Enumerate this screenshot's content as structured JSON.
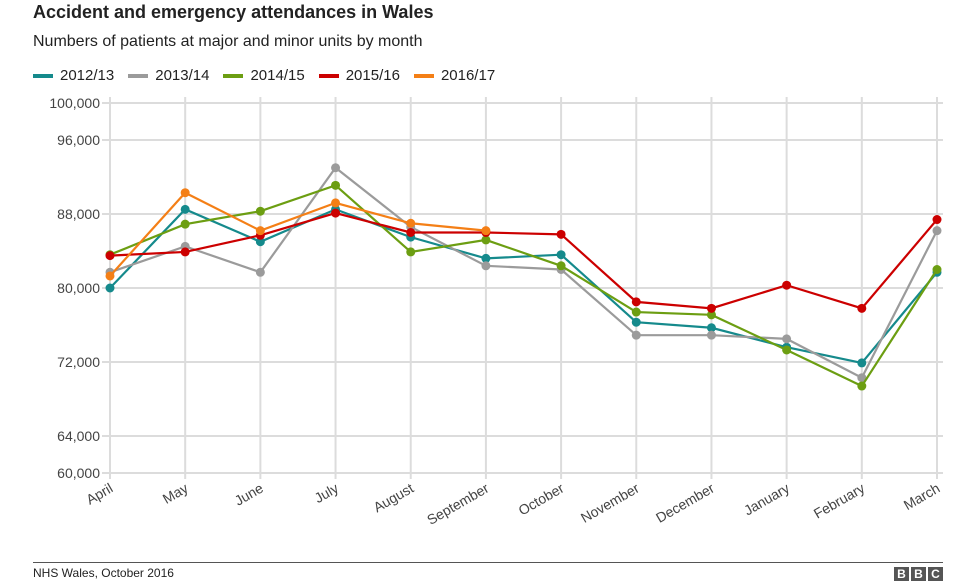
{
  "chart_data": {
    "type": "line",
    "title": "Accident and emergency attendances in Wales",
    "subtitle": "Numbers of patients at major and minor units by month",
    "categories": [
      "April",
      "May",
      "June",
      "July",
      "August",
      "September",
      "October",
      "November",
      "December",
      "January",
      "February",
      "March"
    ],
    "y_ticks": [
      100000,
      96000,
      88000,
      80000,
      72000,
      64000,
      60000
    ],
    "y_tick_labels": [
      "100,000",
      "96,000",
      "88,000",
      "80,000",
      "72,000",
      "64,000",
      "60,000"
    ],
    "ylim": [
      60000,
      100000
    ],
    "grid": true,
    "legend_placement": "top-left",
    "series": [
      {
        "name": "2012/13",
        "color": "#158a8c",
        "values": [
          80000,
          88500,
          85000,
          88500,
          85500,
          83200,
          83600,
          76300,
          75700,
          73600,
          71900,
          81700
        ]
      },
      {
        "name": "2013/14",
        "color": "#9b9b9b",
        "values": [
          81700,
          84500,
          81700,
          93000,
          86600,
          82400,
          82000,
          74900,
          74900,
          74500,
          70300,
          86200
        ]
      },
      {
        "name": "2014/15",
        "color": "#6c9e12",
        "values": [
          83600,
          86900,
          88300,
          91100,
          83900,
          85200,
          82400,
          77400,
          77100,
          73300,
          69400,
          82000
        ]
      },
      {
        "name": "2015/16",
        "color": "#cc0000",
        "values": [
          83500,
          83900,
          85700,
          88100,
          86000,
          86000,
          85800,
          78500,
          77800,
          80300,
          77800,
          87400
        ]
      },
      {
        "name": "2016/17",
        "color": "#f47f16",
        "values": [
          81300,
          90300,
          86200,
          89200,
          87000,
          86200,
          null,
          null,
          null,
          null,
          null,
          null
        ]
      }
    ]
  },
  "footer": {
    "source": "NHS Wales, October 2016",
    "logo": [
      "B",
      "B",
      "C"
    ]
  }
}
